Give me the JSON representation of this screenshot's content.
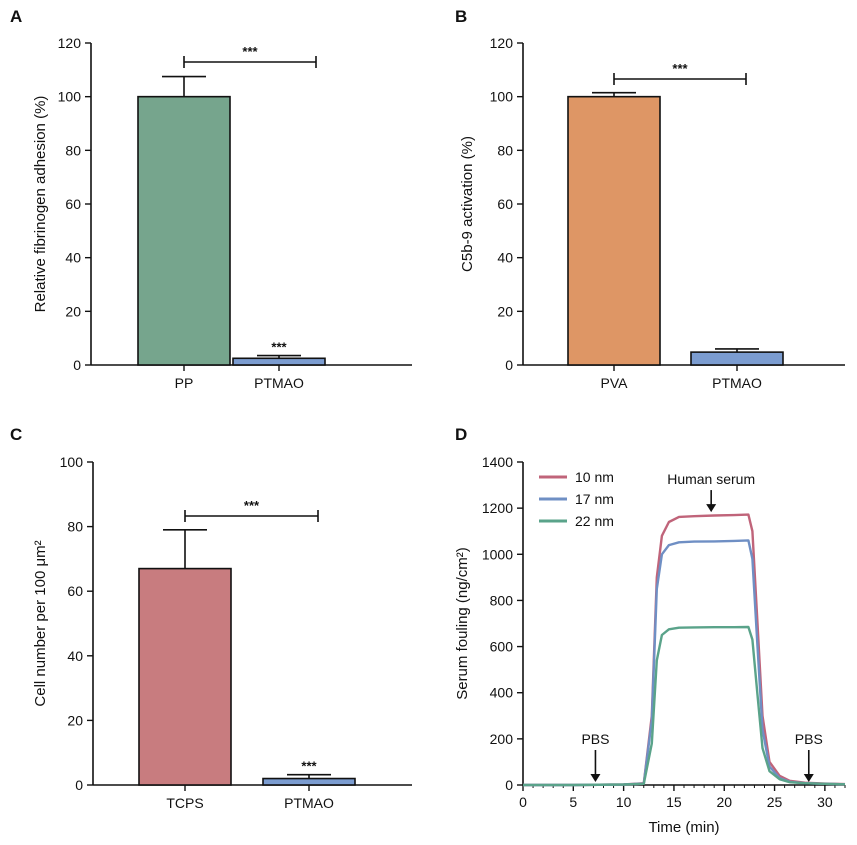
{
  "chart_data": [
    {
      "panel": "A",
      "type": "bar",
      "categories": [
        "PP",
        "PTMAO"
      ],
      "values": [
        100,
        2.5
      ],
      "errors": [
        7.5,
        1.0
      ],
      "ylabel": "Relative fibrinogen adhesion (%)",
      "ylim": [
        0,
        120
      ],
      "yticks": [
        "0",
        "20",
        "40",
        "60",
        "80",
        "100",
        "120"
      ],
      "colors": [
        "#76a58d",
        "#7b9cd0"
      ],
      "significance": {
        "bracket": "***",
        "above_bar": [
          "",
          "***"
        ]
      }
    },
    {
      "panel": "B",
      "type": "bar",
      "categories": [
        "PVA",
        "PTMAO"
      ],
      "values": [
        100,
        4.8
      ],
      "errors": [
        1.5,
        1.2
      ],
      "ylabel": "C5b-9 activation (%)",
      "ylim": [
        0,
        120
      ],
      "yticks": [
        "0",
        "20",
        "40",
        "60",
        "80",
        "100",
        "120"
      ],
      "colors": [
        "#de9665",
        "#7b9cd0"
      ],
      "significance": {
        "bracket": "***",
        "above_bar": [
          "",
          ""
        ]
      }
    },
    {
      "panel": "C",
      "type": "bar",
      "categories": [
        "TCPS",
        "PTMAO"
      ],
      "values": [
        67,
        2
      ],
      "errors": [
        12,
        1.2
      ],
      "ylabel": "Cell number per 100 μm²",
      "ylim": [
        0,
        100
      ],
      "yticks": [
        "0",
        "20",
        "40",
        "60",
        "80",
        "100"
      ],
      "colors": [
        "#c87c7f",
        "#7b9cd0"
      ],
      "significance": {
        "bracket": "***",
        "above_bar": [
          "",
          "***"
        ]
      }
    },
    {
      "panel": "D",
      "type": "line",
      "xlabel": "Time (min)",
      "ylabel": "Serum fouling (ng/cm²)",
      "xlim": [
        0,
        32
      ],
      "ylim": [
        0,
        1400
      ],
      "xticks": [
        "0",
        "5",
        "10",
        "15",
        "20",
        "25",
        "30"
      ],
      "yticks": [
        "0",
        "200",
        "400",
        "600",
        "800",
        "1000",
        "1200",
        "1400"
      ],
      "legend_position": "top-left",
      "series": [
        {
          "name": "10 nm",
          "color": "#c0647a",
          "x": [
            0,
            5,
            10,
            12,
            12.8,
            13.3,
            13.8,
            14.5,
            15.5,
            17,
            19,
            21,
            22.4,
            22.8,
            23.3,
            23.8,
            24.5,
            25.5,
            26.5,
            28,
            30,
            32
          ],
          "y": [
            0,
            0,
            2,
            8,
            300,
            900,
            1080,
            1140,
            1162,
            1165,
            1168,
            1170,
            1172,
            1100,
            700,
            300,
            100,
            40,
            18,
            10,
            6,
            4
          ]
        },
        {
          "name": "17 nm",
          "color": "#6f8fc4",
          "x": [
            0,
            5,
            10,
            12,
            12.8,
            13.3,
            13.8,
            14.5,
            15.5,
            17,
            19,
            21,
            22.4,
            22.8,
            23.3,
            23.8,
            24.5,
            25.5,
            26.5,
            28,
            30,
            32
          ],
          "y": [
            0,
            0,
            2,
            6,
            280,
            850,
            1000,
            1040,
            1052,
            1055,
            1056,
            1058,
            1060,
            980,
            600,
            240,
            80,
            30,
            14,
            8,
            5,
            3
          ]
        },
        {
          "name": "22 nm",
          "color": "#5aa38a",
          "x": [
            0,
            5,
            10,
            12,
            12.8,
            13.3,
            13.8,
            14.5,
            15.5,
            17,
            19,
            21,
            22.4,
            22.8,
            23.3,
            23.8,
            24.5,
            25.5,
            26.5,
            28,
            30,
            32
          ],
          "y": [
            0,
            0,
            2,
            5,
            180,
            540,
            650,
            675,
            682,
            683,
            684,
            684,
            685,
            630,
            390,
            160,
            60,
            25,
            12,
            8,
            5,
            3
          ]
        }
      ],
      "annotations": [
        {
          "text": "Human serum",
          "x": 18.7,
          "y": 1170
        },
        {
          "text": "PBS",
          "x": 7.2,
          "y": 0
        },
        {
          "text": "PBS",
          "x": 28.4,
          "y": 0
        }
      ]
    }
  ]
}
